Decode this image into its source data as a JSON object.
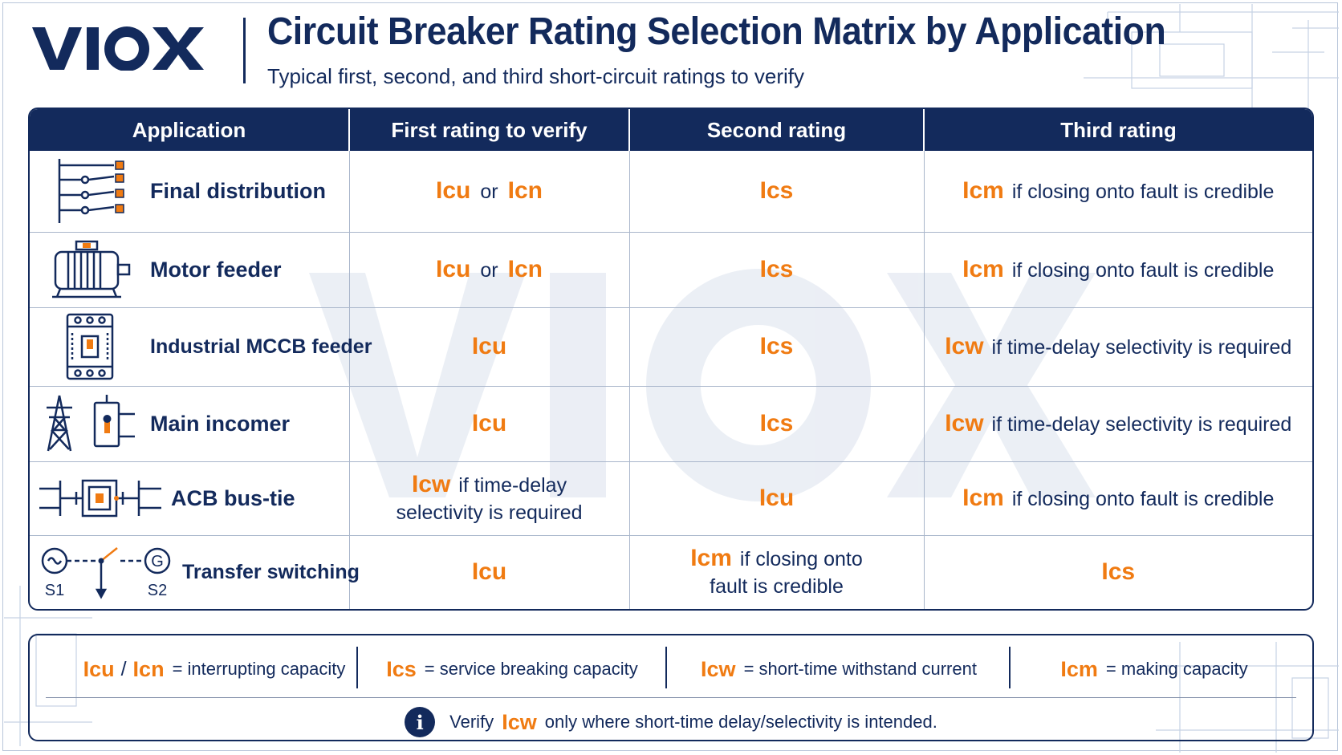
{
  "brand": {
    "logo_text": "VIOX",
    "navy": "#132a5c",
    "orange": "#f07b12"
  },
  "header": {
    "title": "Circuit Breaker Rating Selection Matrix by Application",
    "subtitle": "Typical first, second, and third short-circuit ratings to verify"
  },
  "table": {
    "columns": [
      "Application",
      "First rating to verify",
      "Second rating",
      "Third rating"
    ],
    "rows": [
      {
        "icon": "distribution-board-icon",
        "application": "Final distribution",
        "first": {
          "code": "Icu",
          "or": "or",
          "code2": "Icn"
        },
        "second": {
          "code": "Ics"
        },
        "third": {
          "code": "Icm",
          "note": "if closing onto fault is credible"
        }
      },
      {
        "icon": "motor-icon",
        "application": "Motor feeder",
        "first": {
          "code": "Icu",
          "or": "or",
          "code2": "Icn"
        },
        "second": {
          "code": "Ics"
        },
        "third": {
          "code": "Icm",
          "note": "if closing onto fault is credible"
        }
      },
      {
        "icon": "mccb-icon",
        "application": "Industrial MCCB feeder",
        "first": {
          "code": "Icu"
        },
        "second": {
          "code": "Ics"
        },
        "third": {
          "code": "Icw",
          "note": "if time-delay selectivity is required"
        }
      },
      {
        "icon": "transmission-tower-icon",
        "application": "Main incomer",
        "first": {
          "code": "Icu"
        },
        "second": {
          "code": "Ics"
        },
        "third": {
          "code": "Icw",
          "note": "if time-delay selectivity is required"
        }
      },
      {
        "icon": "acb-bus-tie-icon",
        "application": "ACB bus-tie",
        "first": {
          "code": "Icw",
          "note_line1": "if time-delay",
          "note_line2": "selectivity is required"
        },
        "second": {
          "code": "Icu"
        },
        "third": {
          "code": "Icm",
          "note": "if closing onto fault is credible"
        }
      },
      {
        "icon": "transfer-switch-icon",
        "application": "Transfer switching",
        "icon_labels": {
          "s1": "S1",
          "s2": "S2",
          "g": "G"
        },
        "first": {
          "code": "Icu"
        },
        "second": {
          "code": "Icm",
          "note_line1": "if closing onto",
          "note_line2": "fault is credible"
        },
        "third": {
          "code": "Ics"
        }
      }
    ]
  },
  "legend": {
    "items": [
      {
        "code": "Icu",
        "slash": "/",
        "code2": "Icn",
        "text": "= interrupting capacity"
      },
      {
        "code": "Ics",
        "text": "= service breaking capacity"
      },
      {
        "code": "Icw",
        "text": "= short-time withstand current"
      },
      {
        "code": "Icm",
        "text": "= making capacity"
      }
    ],
    "note": {
      "icon": "info-icon",
      "prefix": "Verify",
      "code": "Icw",
      "suffix": "only where short-time delay/selectivity is intended."
    }
  }
}
